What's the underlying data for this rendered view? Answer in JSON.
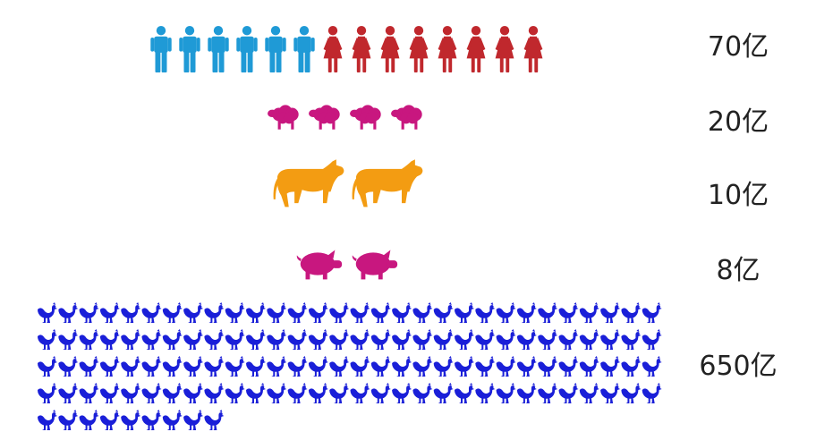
{
  "chart_data": {
    "type": "table",
    "rows": [
      {
        "label": "70亿",
        "groups": [
          {
            "icon": "man-icon",
            "count": 6,
            "color": "#1f9ad6"
          },
          {
            "icon": "woman-icon",
            "count": 8,
            "color": "#c0282d"
          }
        ]
      },
      {
        "label": "20亿",
        "groups": [
          {
            "icon": "sheep-icon",
            "count": 4,
            "color": "#c8177f"
          }
        ]
      },
      {
        "label": "10亿",
        "groups": [
          {
            "icon": "cow-icon",
            "count": 2,
            "color": "#f39c12"
          }
        ]
      },
      {
        "label": "8亿",
        "groups": [
          {
            "icon": "pig-icon",
            "count": 2,
            "color": "#c8177f"
          }
        ]
      },
      {
        "label": "650亿",
        "groups": [
          {
            "icon": "chicken-icon",
            "count": 129,
            "color": "#1a1fd8"
          }
        ]
      }
    ]
  }
}
